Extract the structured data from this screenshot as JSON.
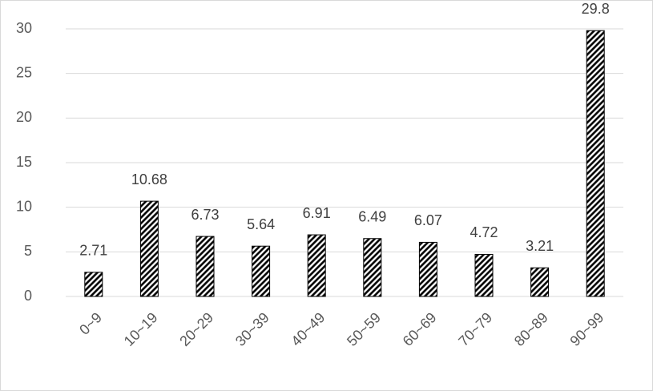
{
  "chart_data": {
    "type": "bar",
    "categories": [
      "0~9",
      "10~19",
      "20~29",
      "30~39",
      "40~49",
      "50~59",
      "60~69",
      "70~79",
      "80~89",
      "90~99"
    ],
    "values": [
      2.71,
      10.68,
      6.73,
      5.64,
      6.91,
      6.49,
      6.07,
      4.72,
      3.21,
      29.8
    ],
    "color": "#000000",
    "ylim": [
      0,
      30
    ],
    "yticks": [
      0,
      5,
      10,
      15,
      20,
      25,
      30
    ],
    "grid": true
  }
}
